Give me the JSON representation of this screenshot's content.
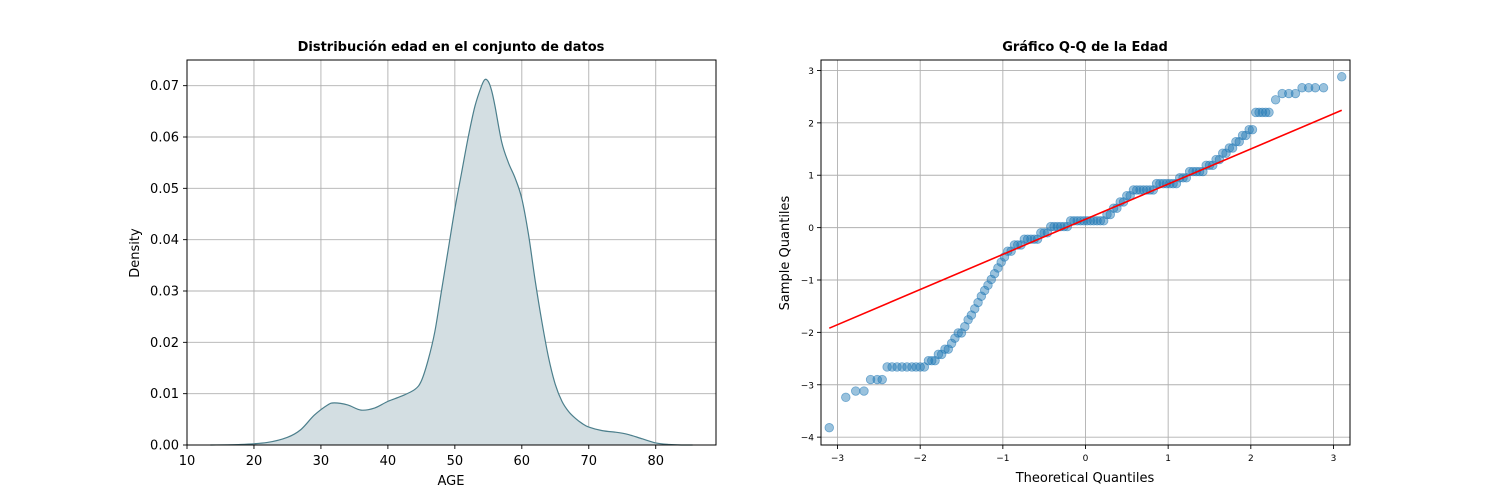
{
  "chart_data": [
    {
      "type": "area",
      "title": "Distribución edad en el conjunto de datos",
      "xlabel": "AGE",
      "ylabel": "Density",
      "xlim": [
        10,
        89
      ],
      "ylim": [
        0,
        0.075
      ],
      "xticks": [
        10,
        20,
        30,
        40,
        50,
        60,
        70,
        80
      ],
      "yticks": [
        0.0,
        0.01,
        0.02,
        0.03,
        0.04,
        0.05,
        0.06,
        0.07
      ],
      "ytick_labels": [
        "0.00",
        "0.01",
        "0.02",
        "0.03",
        "0.04",
        "0.05",
        "0.06",
        "0.07"
      ],
      "grid": true,
      "color": "#4c7f8c",
      "fill_color": "#d3dee2",
      "series": [
        {
          "x": [
            13.5,
            18,
            22,
            25,
            27,
            29,
            31,
            32,
            34,
            36,
            38,
            40,
            42,
            44,
            45,
            46,
            47,
            48,
            49,
            50,
            51,
            52,
            53,
            54,
            54.5,
            55,
            55.5,
            56,
            57,
            58,
            59,
            60,
            61,
            62,
            63,
            64,
            65,
            66,
            67,
            68,
            69,
            70,
            72,
            74,
            75,
            76,
            78,
            80,
            82,
            84,
            85.5
          ],
          "y": [
            0.0,
            0.0001,
            0.0005,
            0.0015,
            0.003,
            0.0058,
            0.0078,
            0.0082,
            0.0078,
            0.0068,
            0.0072,
            0.0085,
            0.0095,
            0.0108,
            0.0125,
            0.0165,
            0.022,
            0.03,
            0.038,
            0.046,
            0.053,
            0.06,
            0.066,
            0.07,
            0.0712,
            0.0708,
            0.069,
            0.066,
            0.059,
            0.055,
            0.052,
            0.048,
            0.041,
            0.032,
            0.024,
            0.017,
            0.0118,
            0.0085,
            0.0065,
            0.0052,
            0.0042,
            0.0035,
            0.0028,
            0.0025,
            0.0023,
            0.002,
            0.0012,
            0.0004,
            0.0001,
            0.0,
            0.0
          ]
        }
      ]
    },
    {
      "type": "scatter",
      "title": "Gráfico Q-Q de la Edad",
      "xlabel": "Theoretical Quantiles",
      "ylabel": "Sample Quantiles",
      "xlim": [
        -3.2,
        3.2
      ],
      "ylim": [
        -4.15,
        3.2
      ],
      "xticks": [
        -3,
        -2,
        -1,
        0,
        1,
        2,
        3
      ],
      "yticks": [
        -4,
        -3,
        -2,
        -1,
        0,
        1,
        2,
        3
      ],
      "grid": true,
      "point_color": "#1f77b4",
      "line_color": "#ff0000",
      "series": [
        {
          "x": [
            -3.1,
            -2.9,
            -2.78,
            -2.68,
            -2.6,
            -2.52,
            -2.46,
            -2.4,
            -2.34,
            -2.28,
            -2.22,
            -2.16,
            -2.1,
            -2.05,
            -2.0,
            -1.95,
            -1.9,
            -1.86,
            -1.82,
            -1.78,
            -1.74,
            -1.7,
            -1.66,
            -1.62,
            -1.58,
            -1.54,
            -1.5,
            -1.46,
            -1.42,
            -1.38,
            -1.34,
            -1.3,
            -1.26,
            -1.22,
            -1.18,
            -1.14,
            -1.1,
            -1.06,
            -1.02,
            -0.98,
            -0.94,
            -0.9,
            -0.86,
            -0.82,
            -0.78,
            -0.74,
            -0.7,
            -0.66,
            -0.62,
            -0.58,
            -0.54,
            -0.5,
            -0.46,
            -0.42,
            -0.38,
            -0.34,
            -0.3,
            -0.26,
            -0.22,
            -0.18,
            -0.14,
            -0.1,
            -0.06,
            -0.02,
            0.02,
            0.06,
            0.1,
            0.14,
            0.18,
            0.22,
            0.26,
            0.3,
            0.34,
            0.38,
            0.42,
            0.46,
            0.5,
            0.54,
            0.58,
            0.62,
            0.66,
            0.7,
            0.74,
            0.78,
            0.82,
            0.86,
            0.9,
            0.94,
            0.98,
            1.02,
            1.06,
            1.1,
            1.14,
            1.18,
            1.22,
            1.26,
            1.3,
            1.34,
            1.38,
            1.42,
            1.46,
            1.5,
            1.54,
            1.58,
            1.62,
            1.66,
            1.7,
            1.74,
            1.78,
            1.82,
            1.86,
            1.9,
            1.94,
            1.98,
            2.02,
            2.06,
            2.1,
            2.14,
            2.18,
            2.22,
            2.3,
            2.38,
            2.46,
            2.54,
            2.62,
            2.7,
            2.78,
            2.88,
            3.1
          ],
          "y": [
            -3.82,
            -3.24,
            -3.12,
            -3.12,
            -2.9,
            -2.9,
            -2.9,
            -2.66,
            -2.66,
            -2.66,
            -2.66,
            -2.66,
            -2.66,
            -2.66,
            -2.66,
            -2.66,
            -2.54,
            -2.54,
            -2.54,
            -2.42,
            -2.42,
            -2.32,
            -2.32,
            -2.21,
            -2.11,
            -2.01,
            -2.01,
            -1.89,
            -1.76,
            -1.67,
            -1.55,
            -1.43,
            -1.31,
            -1.2,
            -1.1,
            -0.99,
            -0.88,
            -0.77,
            -0.66,
            -0.56,
            -0.45,
            -0.45,
            -0.33,
            -0.33,
            -0.33,
            -0.22,
            -0.22,
            -0.22,
            -0.22,
            -0.22,
            -0.1,
            -0.1,
            -0.1,
            0.02,
            0.02,
            0.02,
            0.02,
            0.02,
            0.02,
            0.13,
            0.13,
            0.13,
            0.13,
            0.13,
            0.13,
            0.13,
            0.13,
            0.13,
            0.13,
            0.13,
            0.25,
            0.25,
            0.37,
            0.37,
            0.49,
            0.49,
            0.61,
            0.61,
            0.72,
            0.72,
            0.72,
            0.72,
            0.72,
            0.72,
            0.72,
            0.84,
            0.84,
            0.84,
            0.84,
            0.84,
            0.84,
            0.84,
            0.95,
            0.95,
            0.95,
            1.07,
            1.07,
            1.07,
            1.07,
            1.07,
            1.19,
            1.19,
            1.19,
            1.3,
            1.3,
            1.42,
            1.42,
            1.52,
            1.52,
            1.64,
            1.64,
            1.76,
            1.76,
            1.87,
            1.87,
            2.2,
            2.2,
            2.2,
            2.2,
            2.2,
            2.44,
            2.56,
            2.56,
            2.56,
            2.67,
            2.67,
            2.67,
            2.67,
            2.88
          ]
        }
      ],
      "reference_line": {
        "x": [
          -3.1,
          3.1
        ],
        "y": [
          -1.92,
          2.24
        ]
      }
    }
  ]
}
